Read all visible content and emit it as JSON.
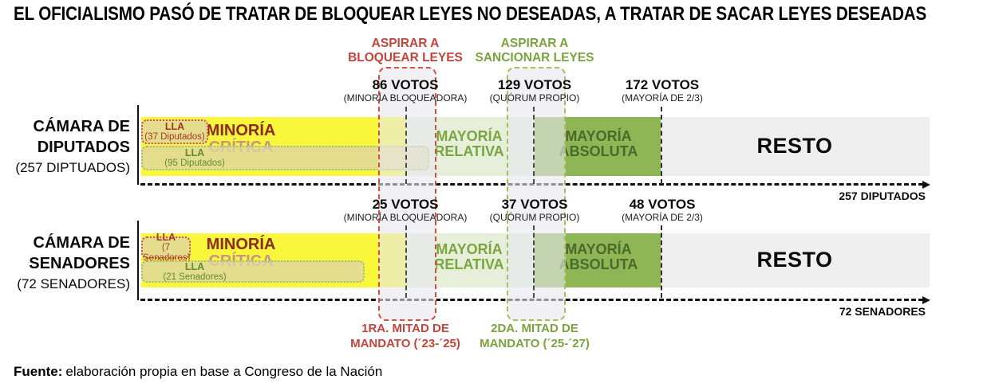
{
  "title": "EL OFICIALISMO PASÓ DE TRATAR DE BLOQUEAR LEYES NO DESEADAS, A TRATAR DE SACAR LEYES DESEADAS",
  "annotations": {
    "bloquear_l1": "ASPIRAR A",
    "bloquear_l2": "BLOQUEAR LEYES",
    "sancionar_l1": "ASPIRAR A",
    "sancionar_l2": "SANCIONAR LEYES",
    "mandato1_l1": "1RA. MITAD DE",
    "mandato1_l2": "MANDATO (´23-´25)",
    "mandato2_l1": "2DA. MITAD DE",
    "mandato2_l2": "MANDATO (´25-´27)"
  },
  "segments": {
    "minoria_l1": "MINORÍA",
    "minoria_l2": "CRÍTICA",
    "relativa_l1": "MAYORÍA",
    "relativa_l2": "RELATIVA",
    "absoluta_l1": "MAYORÍA",
    "absoluta_l2": "ABSOLUTA",
    "resto": "RESTO"
  },
  "diputados": {
    "chamber_l1": "CÁMARA DE",
    "chamber_l2": "DIPUTADOS",
    "chamber_sub": "(257 DIPTUADOS)",
    "axis_label": "257 DIPUTADOS",
    "thresholds": [
      {
        "votes": "86 VOTOS",
        "desc": "(MINORÍA BLOQUEADORA)"
      },
      {
        "votes": "129 VOTOS",
        "desc": "(QUÓRUM PROPIO)"
      },
      {
        "votes": "172 VOTOS",
        "desc": "(MAYORÍA DE 2/3)"
      }
    ],
    "lla_red": {
      "name": "LLA",
      "detail": "(37 Diputados)"
    },
    "lla_green": {
      "name": "LLA",
      "detail": "(95 Diputados)"
    }
  },
  "senadores": {
    "chamber_l1": "CÁMARA DE",
    "chamber_l2": "SENADORES",
    "chamber_sub": "(72 SENADORES)",
    "axis_label": "72 SENADORES",
    "thresholds": [
      {
        "votes": "25 VOTOS",
        "desc": "(MINORÍA BLOQUEADORA)"
      },
      {
        "votes": "37 VOTOS",
        "desc": "(QUÓRUM PROPIO)"
      },
      {
        "votes": "48 VOTOS",
        "desc": "(MAYORÍA DE 2/3)"
      }
    ],
    "lla_red": {
      "name": "LLA",
      "detail": "(7 Senadores)"
    },
    "lla_green": {
      "name": "LLA",
      "detail": "(21 Senadores)"
    }
  },
  "footer": {
    "label": "Fuente:",
    "text": "elaboración propia en base a Congreso de la Nación"
  },
  "colors": {
    "yellow": "#f8f73c",
    "relativa": "#e7efdb",
    "absoluta": "#8fb654",
    "resto": "#efeff0",
    "red_accent": "#c2453c",
    "green_accent": "#7aa33f",
    "red_dash": "#d5513f",
    "green_dash": "#9ec457",
    "lla_green_dash": "#aabf5c",
    "dark_red_text": "#8e2a1e",
    "pink_text": "#c9938d",
    "relativa_text": "#79a73e",
    "absoluta_text": "#4c682c",
    "lla_red_text": "#a8362b",
    "lla_green_text": "#5f8c33",
    "beige_fill": "#ded6a4"
  },
  "chart_data": {
    "type": "bar",
    "orientation": "horizontal",
    "title": "EL OFICIALISMO PASÓ DE TRATAR DE BLOQUEAR LEYES NO DESEADAS, A TRATAR DE SACAR LEYES DESEADAS",
    "source": "elaboración propia en base a Congreso de la Nación",
    "legend_position": "none",
    "annotations": [
      "ASPIRAR A BLOQUEAR LEYES — 1RA. MITAD DE MANDATO (´23-´25)",
      "ASPIRAR A SANCIONAR LEYES — 2DA. MITAD DE MANDATO (´25-´27)"
    ],
    "rows": [
      {
        "chamber": "Cámara de Diputados",
        "total_seats": 257,
        "lla_seats_first_half": 37,
        "lla_seats_second_half": 95,
        "thresholds": [
          {
            "votes": 86,
            "label": "Minoría bloqueadora"
          },
          {
            "votes": 129,
            "label": "Quórum propio"
          },
          {
            "votes": 172,
            "label": "Mayoría de 2/3"
          }
        ],
        "zones": [
          "Minoría crítica",
          "Mayoría relativa",
          "Mayoría absoluta",
          "Resto"
        ]
      },
      {
        "chamber": "Cámara de Senadores",
        "total_seats": 72,
        "lla_seats_first_half": 7,
        "lla_seats_second_half": 21,
        "thresholds": [
          {
            "votes": 25,
            "label": "Minoría bloqueadora"
          },
          {
            "votes": 37,
            "label": "Quórum propio"
          },
          {
            "votes": 48,
            "label": "Mayoría de 2/3"
          }
        ],
        "zones": [
          "Minoría crítica",
          "Mayoría relativa",
          "Mayoría absoluta",
          "Resto"
        ]
      }
    ]
  }
}
